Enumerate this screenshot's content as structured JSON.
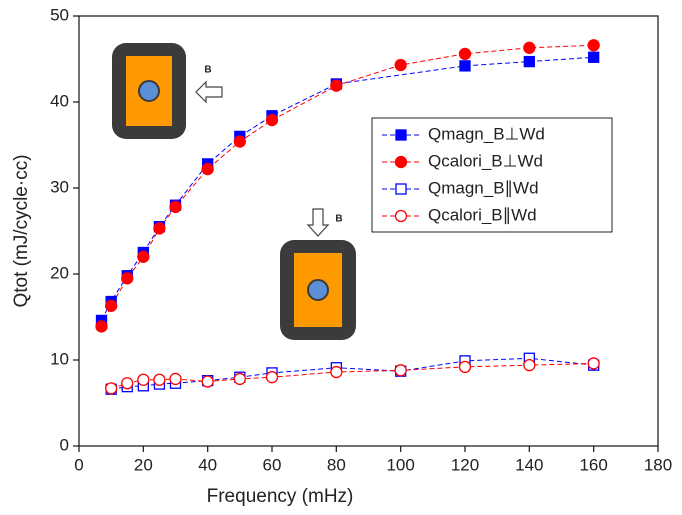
{
  "chart_data": {
    "type": "scatter",
    "xlabel": "Frequency (mHz)",
    "ylabel": "Qtot (mJ/cycle·cc)",
    "xlim": [
      0,
      180
    ],
    "xticks": [
      0,
      20,
      40,
      60,
      80,
      100,
      120,
      140,
      160,
      180
    ],
    "ylim": [
      0,
      50
    ],
    "yticks": [
      0,
      10,
      20,
      30,
      40,
      50
    ],
    "legend": "right",
    "annotations": [
      "B",
      "B"
    ],
    "series": [
      {
        "name": "Qmagn_B⊥Wd",
        "color": "#0000ff",
        "marker": "square",
        "filled": true,
        "x": [
          7,
          10,
          15,
          20,
          25,
          30,
          40,
          50,
          60,
          80,
          120,
          140,
          160
        ],
        "values": [
          14.6,
          16.8,
          19.8,
          22.5,
          25.5,
          28,
          32.8,
          36,
          38.4,
          42.1,
          44.2,
          44.7,
          45.2
        ]
      },
      {
        "name": "Qcalori_B⊥Wd",
        "color": "#ff0000",
        "marker": "circle",
        "filled": true,
        "x": [
          7,
          10,
          15,
          20,
          25,
          30,
          40,
          50,
          60,
          80,
          100,
          120,
          140,
          160
        ],
        "values": [
          13.9,
          16.3,
          19.5,
          22,
          25.3,
          27.8,
          32.2,
          35.4,
          37.9,
          41.9,
          44.3,
          45.6,
          46.3,
          46.6
        ]
      },
      {
        "name": "Qmagn_B∥Wd",
        "color": "#0000ff",
        "marker": "square",
        "filled": false,
        "x": [
          10,
          15,
          20,
          25,
          30,
          40,
          50,
          60,
          80,
          100,
          120,
          140,
          160
        ],
        "values": [
          6.6,
          6.9,
          7.0,
          7.2,
          7.3,
          7.6,
          8.0,
          8.5,
          9.1,
          8.7,
          9.9,
          10.2,
          9.4
        ]
      },
      {
        "name": "Qcalori_B∥Wd",
        "color": "#ff0000",
        "marker": "circle",
        "filled": false,
        "x": [
          10,
          15,
          20,
          25,
          30,
          40,
          50,
          60,
          80,
          100,
          120,
          140,
          160
        ],
        "values": [
          6.7,
          7.3,
          7.7,
          7.7,
          7.8,
          7.5,
          7.8,
          8.0,
          8.6,
          8.8,
          9.2,
          9.4,
          9.6
        ]
      }
    ]
  }
}
